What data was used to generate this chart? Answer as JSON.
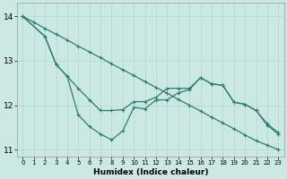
{
  "xlabel": "Humidex (Indice chaleur)",
  "background_color": "#cce8e4",
  "grid_color": "#b0d8d0",
  "line_color": "#2e7d6e",
  "xlim": [
    -0.5,
    23.5
  ],
  "ylim": [
    10.85,
    14.3
  ],
  "yticks": [
    11,
    12,
    13,
    14
  ],
  "xticks": [
    0,
    1,
    2,
    3,
    4,
    5,
    6,
    7,
    8,
    9,
    10,
    11,
    12,
    13,
    14,
    15,
    16,
    17,
    18,
    19,
    20,
    21,
    22,
    23
  ],
  "line1_x": [
    0,
    1,
    2,
    3,
    4,
    5,
    6,
    7,
    8,
    9,
    10,
    11,
    12,
    13,
    14,
    15,
    16,
    17,
    18,
    19,
    20,
    21,
    22,
    23
  ],
  "line1_y": [
    14.0,
    13.87,
    13.73,
    13.6,
    13.47,
    13.33,
    13.2,
    13.07,
    12.93,
    12.8,
    12.67,
    12.53,
    12.4,
    12.27,
    12.13,
    12.0,
    11.87,
    11.73,
    11.6,
    11.47,
    11.33,
    11.2,
    11.1,
    11.0
  ],
  "line2_x": [
    0,
    2,
    3,
    4,
    5,
    6,
    7,
    8,
    9,
    10,
    11,
    12,
    13,
    14,
    15,
    16,
    17,
    18,
    19,
    20,
    21,
    22,
    23
  ],
  "line2_y": [
    14.0,
    13.55,
    12.92,
    12.65,
    12.38,
    12.12,
    11.88,
    11.88,
    11.9,
    12.08,
    12.08,
    12.18,
    12.38,
    12.38,
    12.38,
    12.62,
    12.48,
    12.45,
    12.07,
    12.02,
    11.88,
    11.58,
    11.38
  ],
  "line3_x": [
    0,
    2,
    3,
    4,
    5,
    6,
    7,
    8,
    9,
    10,
    11,
    12,
    13,
    14,
    15,
    16,
    17,
    18,
    19,
    20,
    21,
    22,
    23
  ],
  "line3_y": [
    14.0,
    13.55,
    12.92,
    12.65,
    11.78,
    11.52,
    11.35,
    11.22,
    11.42,
    11.95,
    11.92,
    12.12,
    12.12,
    12.28,
    12.35,
    12.62,
    12.48,
    12.45,
    12.07,
    12.02,
    11.88,
    11.55,
    11.35
  ]
}
